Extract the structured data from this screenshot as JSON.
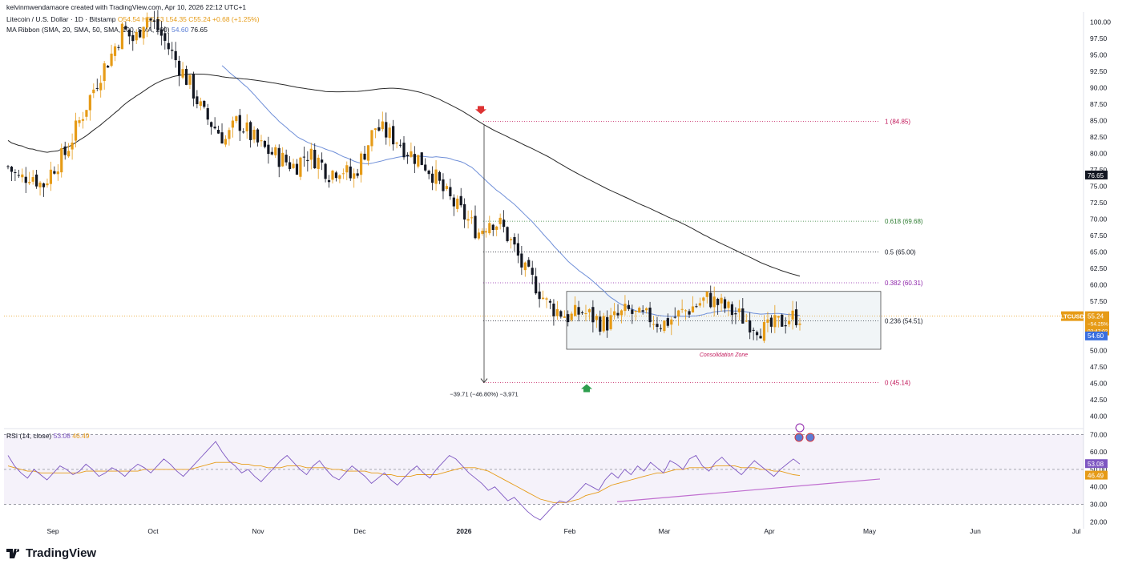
{
  "header": {
    "creator_line": "kelvinmwendamaore created with TradingView.com, Apr 10, 2026 22:12 UTC+1",
    "symbol_line": "Litecoin / U.S. Dollar · 1D · Bitstamp",
    "ohlc": "O54.54  H55.53  L54.35  C55.24  +0.68 (+1.25%)",
    "ma_label": "MA Ribbon (SMA, 20, SMA, 50, SMA, 100, SMA, 200)",
    "ma_val1": "54.60",
    "ma_val2": "76.65"
  },
  "rsi_legend": {
    "label": "RSI (14, close)",
    "v1": "53.08",
    "v2": "46.49"
  },
  "brand": {
    "name": "TradingView"
  },
  "colors": {
    "up": "#e69b17",
    "down": "#131722",
    "ma50": "#6f8fd8",
    "ma200": "#2a2a2a",
    "rsi": "#7e57c2",
    "rsi_ma": "#e69b17",
    "trend": "#c06fd0"
  },
  "chart_data": [
    {
      "type": "candlestick",
      "name": "price",
      "y_axis_ticks": [
        "100.00",
        "97.50",
        "95.00",
        "92.50",
        "90.00",
        "87.50",
        "85.00",
        "82.50",
        "80.00",
        "77.50",
        "75.00",
        "72.50",
        "70.00",
        "67.50",
        "65.00",
        "62.50",
        "60.00",
        "57.50",
        "55.00",
        "52.50",
        "50.00",
        "47.50",
        "45.00",
        "42.50",
        "40.00"
      ],
      "ylim": [
        38.5,
        101.5
      ],
      "x_ticks": [
        "Sep",
        "Oct",
        "Nov",
        "Dec",
        "2026",
        "Feb",
        "Mar",
        "Apr",
        "May",
        "Jun",
        "Jul"
      ],
      "close_path": [
        78,
        76,
        77,
        75,
        78,
        80,
        84,
        88,
        92,
        95,
        99,
        97,
        101,
        99,
        96,
        93,
        90,
        86,
        84,
        82,
        85,
        83,
        81,
        80,
        79,
        78,
        80,
        79,
        77,
        78,
        76,
        80,
        84,
        83,
        82,
        80,
        79,
        77,
        74,
        72,
        70,
        68,
        70,
        69,
        66,
        62,
        60,
        57,
        56,
        55,
        56,
        55,
        54,
        55,
        56,
        55,
        55,
        54,
        55,
        56,
        57,
        58,
        57,
        56,
        55,
        54,
        53,
        54,
        55,
        55.24
      ],
      "fib_levels": [
        {
          "label": "1 (84.85)",
          "value": 84.85,
          "color": "#c2185b"
        },
        {
          "label": "0.618 (69.68)",
          "value": 69.68,
          "color": "#2e7d32"
        },
        {
          "label": "0.5 (65.00)",
          "value": 65.0,
          "color": "#131722"
        },
        {
          "label": "0.382 (60.31)",
          "value": 60.31,
          "color": "#8e24aa"
        },
        {
          "label": "0.236 (54.51)",
          "value": 54.51,
          "color": "#131722"
        },
        {
          "label": "0 (45.14)",
          "value": 45.14,
          "color": "#c2185b"
        }
      ],
      "consolidation_zone": {
        "label": "Consolidation Zone",
        "low": 50.2,
        "high": 59.0
      },
      "measure_label": "−39.71 (−46.80%) −3,971",
      "price_tags": {
        "symbol": "LTCUSD",
        "last": "55.24",
        "change": "−54.25%",
        "countdown": "02:47:02",
        "ma50": "54.60",
        "ma200": "76.65"
      }
    },
    {
      "type": "line",
      "name": "rsi",
      "y_axis_ticks": [
        "70.00",
        "60.00",
        "50.00",
        "40.00",
        "30.00",
        "20.00"
      ],
      "ylim": [
        16,
        72
      ],
      "band": [
        30,
        70
      ],
      "values": [
        58,
        52,
        48,
        45,
        50,
        47,
        44,
        48,
        52,
        50,
        47,
        49,
        53,
        50,
        46,
        48,
        51,
        49,
        46,
        50,
        53,
        51,
        48,
        52,
        56,
        53,
        49,
        46,
        50,
        54,
        58,
        62,
        66,
        60,
        55,
        52,
        48,
        50,
        46,
        43,
        47,
        51,
        55,
        58,
        54,
        50,
        47,
        52,
        55,
        50,
        46,
        44,
        48,
        52,
        49,
        46,
        42,
        45,
        48,
        44,
        41,
        45,
        49,
        52,
        48,
        45,
        50,
        54,
        58,
        56,
        52,
        48,
        45,
        42,
        38,
        40,
        36,
        32,
        34,
        30,
        26,
        23,
        21,
        25,
        29,
        32,
        31,
        34,
        38,
        42,
        40,
        38,
        44,
        48,
        45,
        50,
        47,
        52,
        49,
        54,
        51,
        48,
        55,
        53,
        50,
        56,
        58,
        52,
        49,
        54,
        57,
        53,
        50,
        47,
        51,
        55,
        52,
        49,
        46,
        50,
        53,
        56,
        53.08
      ],
      "ma_values": [
        52,
        51,
        50,
        49,
        49,
        48,
        48,
        48,
        48,
        48,
        48,
        48,
        49,
        49,
        49,
        49,
        49,
        49,
        49,
        49,
        49,
        50,
        50,
        50,
        50,
        50,
        50,
        50,
        50,
        51,
        52,
        53,
        54,
        54,
        54,
        54,
        53,
        53,
        52,
        52,
        51,
        51,
        51,
        52,
        52,
        52,
        51,
        51,
        51,
        51,
        50,
        50,
        49,
        49,
        49,
        49,
        48,
        48,
        47,
        47,
        46,
        46,
        46,
        47,
        47,
        47,
        47,
        48,
        49,
        50,
        51,
        51,
        51,
        50,
        49,
        47,
        45,
        43,
        41,
        39,
        37,
        35,
        33,
        32,
        31,
        31,
        31,
        32,
        33,
        35,
        36,
        37,
        39,
        41,
        42,
        43,
        44,
        45,
        46,
        47,
        48,
        48,
        49,
        50,
        50,
        51,
        51,
        51,
        51,
        52,
        52,
        52,
        52,
        51,
        51,
        51,
        50,
        50,
        49,
        49,
        48,
        47,
        46.49
      ]
    }
  ]
}
